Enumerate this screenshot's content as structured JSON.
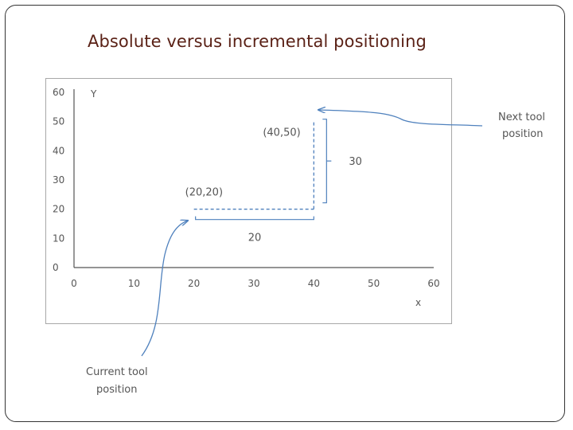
{
  "title": "Absolute versus incremental positioning",
  "chart_data": {
    "type": "line",
    "xlabel": "x",
    "ylabel": "Y",
    "xlim": [
      0,
      60
    ],
    "ylim": [
      0,
      60
    ],
    "x_ticks": [
      "0",
      "10",
      "20",
      "30",
      "40",
      "60"
    ],
    "x_ticks_all": [
      "0",
      "10",
      "20",
      "30",
      "40",
      "50",
      "60"
    ],
    "y_ticks": [
      "0",
      "10",
      "20",
      "30",
      "40",
      "50",
      "60"
    ],
    "path_points": [
      {
        "x": 20,
        "y": 20
      },
      {
        "x": 40,
        "y": 20
      },
      {
        "x": 40,
        "y": 50
      }
    ],
    "point_labels": [
      "(20,20)",
      "(40,50)"
    ],
    "increment_labels": {
      "dx": "20",
      "dy": "30"
    },
    "colors": {
      "axis": "#555555",
      "path": "#4f81bd",
      "arrow": "#4f81bd",
      "title": "#5a2116"
    }
  },
  "annotations": {
    "next_tool": [
      "Next tool",
      "position"
    ],
    "current_tool": [
      "Current tool",
      "position"
    ]
  }
}
